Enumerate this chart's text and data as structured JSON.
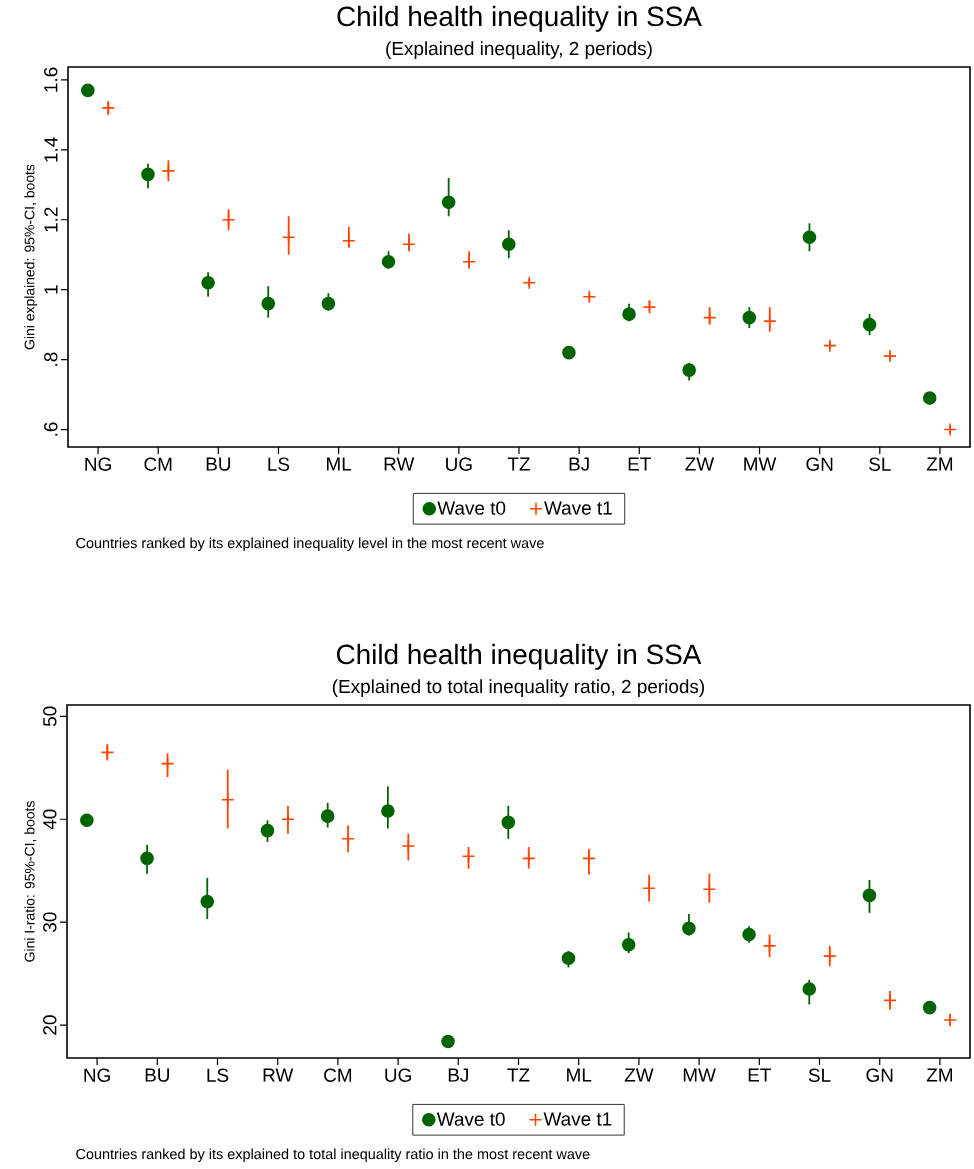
{
  "chart_data": [
    {
      "type": "scatter",
      "title": "Child health inequality in SSA",
      "subtitle": "(Explained inequality, 2 periods)",
      "ylabel": "Gini explained: 95%-CI, boots",
      "categories": [
        "NG",
        "CM",
        "BU",
        "LS",
        "ML",
        "RW",
        "UG",
        "TZ",
        "BJ",
        "ET",
        "ZW",
        "MW",
        "GN",
        "SL",
        "ZM"
      ],
      "series": [
        {
          "name": "Wave t0",
          "color": "#006400",
          "marker": "circle",
          "values": [
            1.57,
            1.33,
            1.02,
            0.96,
            0.96,
            1.08,
            1.25,
            1.13,
            0.82,
            0.93,
            0.77,
            0.92,
            1.15,
            0.9,
            0.69
          ],
          "errors": [
            [
              1.56,
              1.58
            ],
            [
              1.29,
              1.36
            ],
            [
              0.98,
              1.05
            ],
            [
              0.92,
              1.01
            ],
            [
              0.94,
              0.99
            ],
            [
              1.06,
              1.11
            ],
            [
              1.21,
              1.32
            ],
            [
              1.09,
              1.17
            ],
            [
              0.81,
              0.83
            ],
            [
              0.91,
              0.96
            ],
            [
              0.74,
              0.79
            ],
            [
              0.89,
              0.95
            ],
            [
              1.11,
              1.19
            ],
            [
              0.87,
              0.93
            ],
            [
              0.67,
              0.7
            ]
          ]
        },
        {
          "name": "Wave t1",
          "color": "#ff4500",
          "marker": "cross",
          "values": [
            1.52,
            1.34,
            1.2,
            1.15,
            1.14,
            1.13,
            1.08,
            1.02,
            0.98,
            0.95,
            0.92,
            0.91,
            0.84,
            0.81,
            0.6
          ],
          "errors": [
            [
              1.5,
              1.54
            ],
            [
              1.31,
              1.37
            ],
            [
              1.17,
              1.23
            ],
            [
              1.1,
              1.21
            ],
            [
              1.12,
              1.18
            ],
            [
              1.11,
              1.16
            ],
            [
              1.06,
              1.11
            ],
            [
              1.01,
              1.03
            ],
            [
              0.97,
              0.99
            ],
            [
              0.94,
              0.97
            ],
            [
              0.9,
              0.95
            ],
            [
              0.88,
              0.95
            ],
            [
              0.83,
              0.85
            ],
            [
              0.8,
              0.82
            ],
            [
              0.59,
              0.61
            ]
          ]
        }
      ],
      "ylim": [
        0.55,
        1.637
      ],
      "yticks": [
        {
          "value": 0.6,
          "label": ".6"
        },
        {
          "value": 0.8,
          "label": ".8"
        },
        1,
        1.2,
        1.4,
        1.6
      ],
      "legend": "bottom",
      "annotations": [
        "Countries ranked by its explained inequality level in the most recent wave"
      ]
    },
    {
      "type": "scatter",
      "title": "Child health inequality in SSA",
      "subtitle": "(Explained to total inequality ratio, 2 periods)",
      "ylabel": "Gini I-ratio: 95%-CI, boots",
      "categories": [
        "NG",
        "BU",
        "LS",
        "RW",
        "CM",
        "UG",
        "BJ",
        "TZ",
        "ML",
        "ZW",
        "MW",
        "ET",
        "SL",
        "GN",
        "ZM"
      ],
      "series": [
        {
          "name": "Wave t0",
          "color": "#006400",
          "marker": "circle",
          "values": [
            39.9,
            36.2,
            32.0,
            38.9,
            40.3,
            40.8,
            18.4,
            39.7,
            26.5,
            27.8,
            29.4,
            28.8,
            23.5,
            32.6,
            21.7
          ],
          "errors": [
            [
              39.5,
              40.2
            ],
            [
              34.7,
              37.5
            ],
            [
              30.3,
              34.3
            ],
            [
              37.8,
              39.9
            ],
            [
              39.2,
              41.6
            ],
            [
              39.1,
              43.2
            ],
            null,
            [
              38.1,
              41.3
            ],
            [
              25.6,
              27.2
            ],
            [
              27.0,
              29.0
            ],
            [
              28.7,
              30.8
            ],
            [
              28.0,
              29.6
            ],
            [
              22.0,
              24.4
            ],
            [
              30.9,
              34.1
            ],
            [
              21.2,
              22.2
            ]
          ]
        },
        {
          "name": "Wave t1",
          "color": "#ff4500",
          "marker": "cross",
          "values": [
            46.5,
            45.4,
            41.9,
            40.0,
            38.1,
            37.4,
            36.4,
            36.2,
            36.2,
            33.3,
            33.2,
            27.7,
            26.7,
            22.4,
            20.5
          ],
          "errors": [
            [
              45.7,
              47.3
            ],
            [
              44.1,
              46.4
            ],
            [
              39.1,
              44.8
            ],
            [
              38.6,
              41.3
            ],
            [
              36.8,
              39.4
            ],
            [
              36.0,
              38.6
            ],
            [
              35.2,
              37.3
            ],
            [
              35.2,
              37.3
            ],
            [
              34.6,
              37.1
            ],
            [
              32.0,
              34.6
            ],
            [
              31.9,
              34.7
            ],
            [
              26.6,
              28.8
            ],
            [
              25.7,
              27.7
            ],
            [
              21.5,
              23.3
            ],
            [
              19.9,
              21.1
            ]
          ]
        }
      ],
      "ylim": [
        16.8,
        51.1
      ],
      "yticks": [
        20,
        30,
        40,
        50
      ],
      "legend": "bottom",
      "annotations": [
        "Countries ranked by its explained to total inequality ratio in the most recent wave"
      ]
    }
  ]
}
